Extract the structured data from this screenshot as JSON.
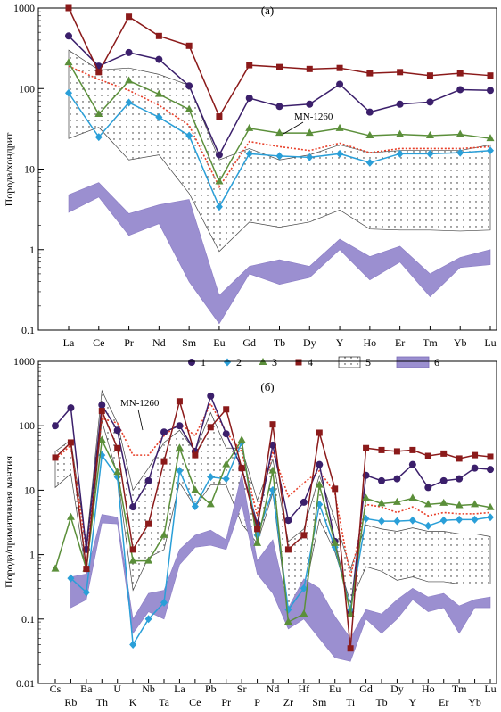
{
  "chart_data": [
    {
      "type": "line",
      "panel_label": "(а)",
      "ylabel": "Порода/хондрит",
      "yscale": "log",
      "ylim": [
        0.1,
        1000
      ],
      "yticks": [
        "0.1",
        "1",
        "10",
        "100",
        "1000"
      ],
      "categories": [
        "La",
        "Ce",
        "Pr",
        "Nd",
        "Sm",
        "Eu",
        "Gd",
        "Tb",
        "Dy",
        "Y",
        "Ho",
        "Er",
        "Tm",
        "Yb",
        "Lu"
      ],
      "series": [
        {
          "name": "1",
          "color": "#3b1f6b",
          "marker": "circle",
          "values": [
            450,
            190,
            280,
            230,
            108,
            15,
            76,
            60,
            64,
            113,
            51,
            64,
            68,
            97,
            95
          ]
        },
        {
          "name": "2",
          "color": "#2a9fd8",
          "marker": "diamond",
          "values": [
            88,
            25,
            67,
            44,
            26,
            3.4,
            15.5,
            14.5,
            14,
            15.5,
            12,
            15.5,
            15.5,
            16,
            17
          ]
        },
        {
          "name": "3",
          "color": "#5b8f3a",
          "marker": "triangle",
          "values": [
            210,
            48,
            125,
            85,
            55,
            7,
            32,
            28,
            28,
            32,
            26,
            27,
            26,
            27,
            24
          ]
        },
        {
          "name": "4",
          "color": "#8b1a1a",
          "marker": "square",
          "values": [
            1000,
            160,
            780,
            450,
            340,
            45,
            195,
            185,
            175,
            180,
            155,
            160,
            145,
            155,
            145
          ]
        }
      ],
      "reference": {
        "name": "MN-1260",
        "color": "#e8402a",
        "values": [
          190,
          130,
          95,
          62,
          35,
          6,
          22,
          19,
          17,
          21,
          16,
          18,
          18,
          18,
          19
        ]
      },
      "field_5": {
        "upper": [
          300,
          170,
          180,
          150,
          110,
          13,
          18,
          13,
          15,
          20,
          16,
          17,
          17,
          17,
          20
        ],
        "lower": [
          24,
          33,
          13,
          15,
          5,
          0.95,
          2.2,
          1.9,
          2.2,
          3.1,
          1.8,
          1.75,
          1.75,
          1.7,
          1.75
        ]
      },
      "field_6": {
        "upper": [
          4.8,
          6.8,
          2.8,
          3.6,
          4.2,
          0.27,
          0.62,
          0.75,
          0.62,
          1.35,
          0.82,
          1.1,
          0.5,
          0.8,
          1.0
        ]
      },
      "field_6_lower": [
        2.9,
        4.5,
        1.5,
        2.1,
        0.4,
        0.12,
        0.5,
        0.37,
        0.45,
        1.0,
        0.42,
        0.7,
        0.26,
        0.6,
        0.65
      ]
    },
    {
      "type": "line",
      "panel_label": "(б)",
      "ylabel": "Порода/примитивная мантия",
      "yscale": "log",
      "ylim": [
        0.01,
        1000
      ],
      "yticks": [
        "0.01",
        "0.1",
        "1",
        "10",
        "100",
        "1000"
      ],
      "categories": [
        "Cs",
        "Rb",
        "Ba",
        "Th",
        "U",
        "K",
        "Nb",
        "Ta",
        "La",
        "Ce",
        "Pb",
        "Pr",
        "Sr",
        "P",
        "Nd",
        "Zr",
        "Hf",
        "Sm",
        "Eu",
        "Ti",
        "Gd",
        "Tb",
        "Dy",
        "Y",
        "Ho",
        "Er",
        "Tm",
        "Yb",
        "Lu"
      ],
      "series": [
        {
          "name": "1",
          "color": "#3b1f6b",
          "marker": "circle",
          "values": [
            100,
            190,
            1.2,
            210,
            85,
            5.5,
            14,
            80,
            100,
            40,
            290,
            75,
            22,
            3,
            50,
            3.4,
            6.5,
            25,
            1.6,
            0.13,
            17,
            14,
            15,
            25,
            11,
            14,
            15,
            22,
            21
          ]
        },
        {
          "name": "2",
          "color": "#2a9fd8",
          "marker": "diamond",
          "values": [
            null,
            0.43,
            0.26,
            35,
            16,
            0.04,
            0.1,
            0.18,
            20,
            5.6,
            16,
            15,
            55,
            2,
            10,
            0.14,
            0.3,
            6,
            1.3,
            0.14,
            3.6,
            3.3,
            3.3,
            3.4,
            2.8,
            3.4,
            3.5,
            3.5,
            3.8
          ]
        },
        {
          "name": "3",
          "color": "#5b8f3a",
          "marker": "triangle",
          "values": [
            0.6,
            3.8,
            0.6,
            60,
            19,
            0.8,
            0.8,
            2,
            45,
            10,
            6,
            25,
            60,
            1.5,
            20,
            0.09,
            0.12,
            12,
            1.5,
            0.12,
            7.5,
            6.2,
            6.5,
            7.5,
            6,
            6.3,
            5.8,
            6,
            5.4
          ]
        },
        {
          "name": "4",
          "color": "#8b1a1a",
          "marker": "square",
          "values": [
            32,
            55,
            0.6,
            170,
            45,
            1.2,
            3,
            28,
            240,
            35,
            95,
            180,
            22,
            2.5,
            105,
            1.2,
            2,
            78,
            10.5,
            0.035,
            45,
            42,
            40,
            42,
            34,
            37,
            31,
            35,
            33
          ]
        }
      ],
      "reference": {
        "name": "MN-1260",
        "color": "#e8402a",
        "values": [
          30,
          50,
          1.2,
          130,
          110,
          35,
          35,
          70,
          110,
          70,
          220,
          80,
          40,
          4,
          40,
          8,
          13,
          20,
          9,
          0.45,
          6,
          5.5,
          4.5,
          5.5,
          4,
          4.5,
          4.3,
          4.3,
          4.5
        ]
      },
      "field_5": {
        "upper": [
          40,
          60,
          1.5,
          350,
          110,
          10,
          22,
          55,
          85,
          40,
          160,
          45,
          45,
          7,
          30,
          1.6,
          2.5,
          17,
          3.5,
          0.6,
          2.9,
          2.5,
          2.3,
          2.6,
          2.3,
          2.3,
          2.1,
          2.1,
          1.9
        ]
      },
      "field_5_lower": [
        11,
        18,
        0.5,
        120,
        17,
        0.28,
        0.9,
        1.2,
        13,
        5.5,
        12,
        12,
        3,
        1.5,
        9,
        0.1,
        0.22,
        3.5,
        1.1,
        0.18,
        0.65,
        0.55,
        0.4,
        0.45,
        0.38,
        0.38,
        0.35,
        0.35,
        0.35
      ],
      "field_6": {
        "upper": [
          null,
          0.45,
          0.5,
          4.2,
          3.8,
          0.1,
          0.25,
          0.28,
          1.2,
          2,
          2.4,
          1.7,
          18,
          0.8,
          1.7,
          0.15,
          0.42,
          0.3,
          0.11,
          0.05,
          0.14,
          0.12,
          0.2,
          0.3,
          0.22,
          0.25,
          0.16,
          0.2,
          0.22
        ]
      },
      "field_6_lower": [
        null,
        0.15,
        0.2,
        3.1,
        3.0,
        0.06,
        0.13,
        0.1,
        0.7,
        1.3,
        1.4,
        1.2,
        6,
        0.5,
        0.25,
        0.07,
        0.1,
        0.05,
        0.025,
        0.022,
        0.1,
        0.06,
        0.1,
        0.2,
        0.13,
        0.15,
        0.06,
        0.15,
        0.15
      ]
    }
  ],
  "legend": {
    "entries": [
      {
        "label": "1",
        "kind": "circle",
        "color": "#3b1f6b"
      },
      {
        "label": "2",
        "kind": "diamond",
        "color": "#2a9fd8"
      },
      {
        "label": "3",
        "kind": "triangle",
        "color": "#5b8f3a"
      },
      {
        "label": "4",
        "kind": "square",
        "color": "#8b1a1a"
      },
      {
        "label": "5",
        "kind": "dotted-field",
        "color": "#000000"
      },
      {
        "label": "6",
        "kind": "filled-field",
        "color": "#9b8fd0"
      }
    ]
  }
}
